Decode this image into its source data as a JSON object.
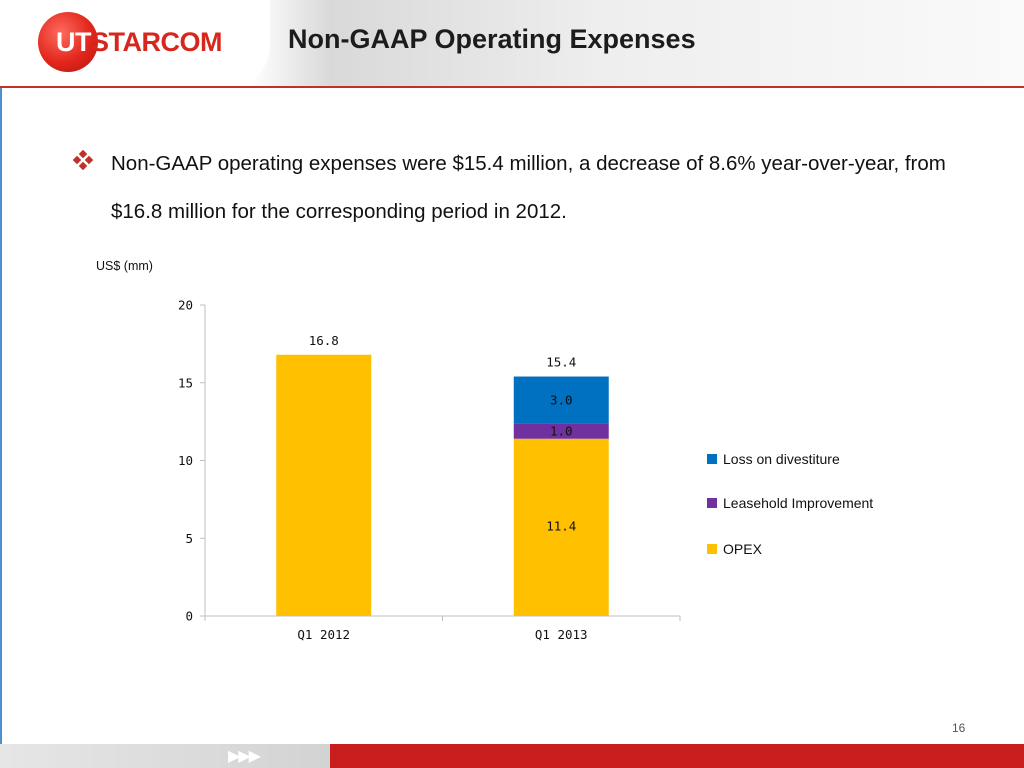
{
  "header": {
    "logo_text": "UTSTARCOM",
    "title": "Non-GAAP Operating Expenses"
  },
  "bullet": {
    "text": "Non-GAAP operating expenses were $15.4 million, a decrease of 8.6% year-over-year, from $16.8 million for the corresponding period in 2012."
  },
  "footer": {
    "page_number": "16"
  },
  "colors": {
    "opex": "#ffc000",
    "leasehold": "#7030a0",
    "loss": "#0070c0",
    "brand_red": "#c81e1e"
  },
  "chart_data": {
    "type": "bar",
    "stacked": true,
    "unit_label": "US$ (mm)",
    "categories": [
      "Q1 2012",
      "Q1 2013"
    ],
    "series": [
      {
        "name": "OPEX",
        "values": [
          16.8,
          11.4
        ],
        "color": "#ffc000"
      },
      {
        "name": "Leasehold Improvement",
        "values": [
          null,
          1.0
        ],
        "color": "#7030a0"
      },
      {
        "name": "Loss on divestiture",
        "values": [
          null,
          3.0
        ],
        "color": "#0070c0"
      }
    ],
    "totals": [
      16.8,
      15.4
    ],
    "value_labels": {
      "OPEX": [
        "16.8",
        "11.4"
      ],
      "Leasehold Improvement": [
        "",
        "1.0"
      ],
      "Loss on divestiture": [
        "",
        "3.0"
      ]
    },
    "total_labels": [
      "",
      "15.4"
    ],
    "ylim": [
      0,
      20
    ],
    "yticks": [
      0,
      5,
      10,
      15,
      20
    ],
    "legend_position": "right",
    "legend": [
      "Loss on divestiture",
      "Leasehold Improvement",
      "OPEX"
    ],
    "grid": false
  }
}
